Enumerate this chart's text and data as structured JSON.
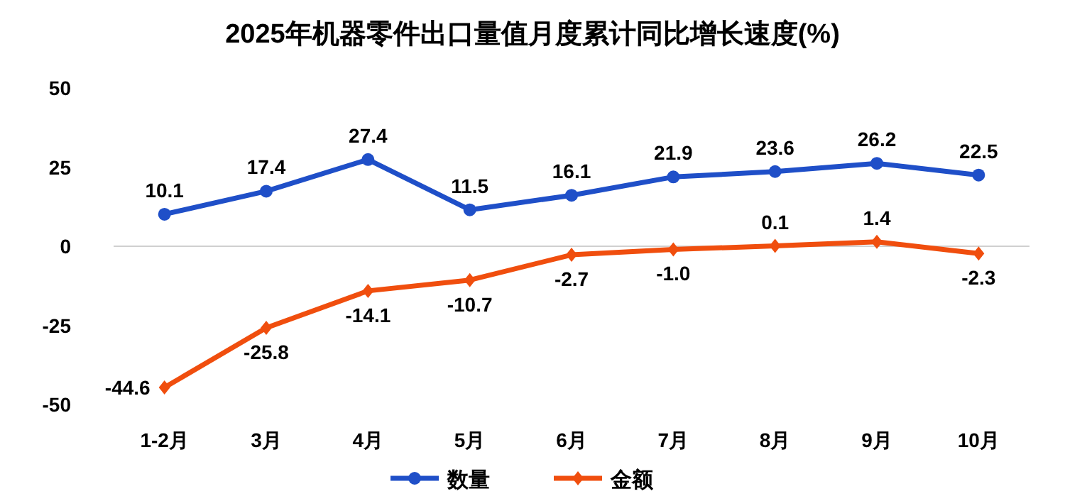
{
  "chart_data": {
    "type": "line",
    "title": "2025年机器零件出口量值月度累计同比增长速度(%)",
    "categories": [
      "1-2月",
      "3月",
      "4月",
      "5月",
      "6月",
      "7月",
      "8月",
      "9月",
      "10月"
    ],
    "series": [
      {
        "name": "数量",
        "color": "#1f4fc8",
        "marker": "circle",
        "values": [
          10.1,
          17.4,
          27.4,
          11.5,
          16.1,
          21.9,
          23.6,
          26.2,
          22.5
        ],
        "value_labels": [
          "10.1",
          "17.4",
          "27.4",
          "11.5",
          "16.1",
          "21.9",
          "23.6",
          "26.2",
          "22.5"
        ]
      },
      {
        "name": "金额",
        "color": "#f04e0e",
        "marker": "diamond",
        "values": [
          -44.6,
          -25.8,
          -14.1,
          -10.7,
          -2.7,
          -1.0,
          0.1,
          1.4,
          -2.3
        ],
        "value_labels": [
          "-44.6",
          "-25.8",
          "-14.1",
          "-10.7",
          "-2.7",
          "-1.0",
          "0.1",
          "1.4",
          "-2.3"
        ]
      }
    ],
    "ylim": [
      -50,
      50
    ],
    "yticks": [
      -50,
      -25,
      0,
      25,
      50
    ],
    "ref_lines": [
      {
        "axis": "y",
        "value": 0,
        "color": "#d0d0d0"
      }
    ],
    "legend": "bottom"
  }
}
